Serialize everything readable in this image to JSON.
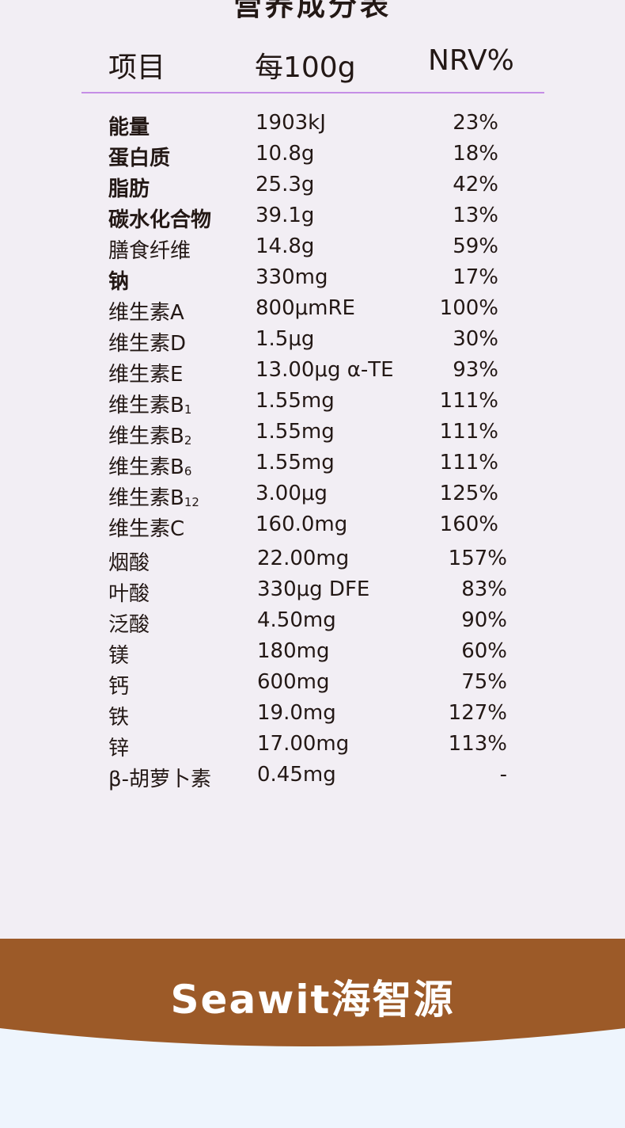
{
  "title": "营养成分表",
  "header": {
    "item": "项目",
    "per100g": "每100g",
    "nrv": "NRV%"
  },
  "rows": [
    {
      "name": "能量",
      "sub": "",
      "value": "1903kJ",
      "nrv": "23%",
      "bold": true
    },
    {
      "name": "蛋白质",
      "sub": "",
      "value": "10.8g",
      "nrv": "18%",
      "bold": true
    },
    {
      "name": "脂肪",
      "sub": "",
      "value": "25.3g",
      "nrv": "42%",
      "bold": true
    },
    {
      "name": "碳水化合物",
      "sub": "",
      "value": "39.1g",
      "nrv": "13%",
      "bold": true
    },
    {
      "name": "膳食纤维",
      "sub": "",
      "value": "14.8g",
      "nrv": "59%",
      "bold": false
    },
    {
      "name": "钠",
      "sub": "",
      "value": "330mg",
      "nrv": "17%",
      "bold": true
    },
    {
      "name": "维生素A",
      "sub": "",
      "value": "800μmRE",
      "nrv": "100%",
      "bold": false
    },
    {
      "name": "维生素D",
      "sub": "",
      "value": "1.5μg",
      "nrv": "30%",
      "bold": false
    },
    {
      "name": "维生素E",
      "sub": "",
      "value": "13.00μg α-TE",
      "nrv": "93%",
      "bold": false
    },
    {
      "name": "维生素B",
      "sub": "1",
      "value": "1.55mg",
      "nrv": "111%",
      "bold": false
    },
    {
      "name": "维生素B",
      "sub": "2",
      "value": "1.55mg",
      "nrv": "111%",
      "bold": false
    },
    {
      "name": "维生素B",
      "sub": "6",
      "value": "1.55mg",
      "nrv": "111%",
      "bold": false
    },
    {
      "name": "维生素B",
      "sub": "12",
      "value": "3.00μg",
      "nrv": "125%",
      "bold": false
    },
    {
      "name": "维生素C",
      "sub": "",
      "value": "160.0mg",
      "nrv": "160%",
      "bold": false
    },
    {
      "name": "烟酸",
      "sub": "",
      "value": "22.00mg",
      "nrv": "157%",
      "bold": false
    },
    {
      "name": "叶酸",
      "sub": "",
      "value": "330μg DFE",
      "nrv": "83%",
      "bold": false
    },
    {
      "name": "泛酸",
      "sub": "",
      "value": "4.50mg",
      "nrv": "90%",
      "bold": false
    },
    {
      "name": "镁",
      "sub": "",
      "value": "180mg",
      "nrv": "60%",
      "bold": false
    },
    {
      "name": "钙",
      "sub": "",
      "value": "600mg",
      "nrv": "75%",
      "bold": false
    },
    {
      "name": "铁",
      "sub": "",
      "value": "19.0mg",
      "nrv": "127%",
      "bold": false
    },
    {
      "name": "锌",
      "sub": "",
      "value": "17.00mg",
      "nrv": "113%",
      "bold": false
    },
    {
      "name": "β-胡萝卜素",
      "sub": "",
      "value": "0.45mg",
      "nrv": "-",
      "bold": false
    }
  ],
  "brand": {
    "logo_text": "Seawit海智源",
    "band_color": "#9c5a28"
  }
}
